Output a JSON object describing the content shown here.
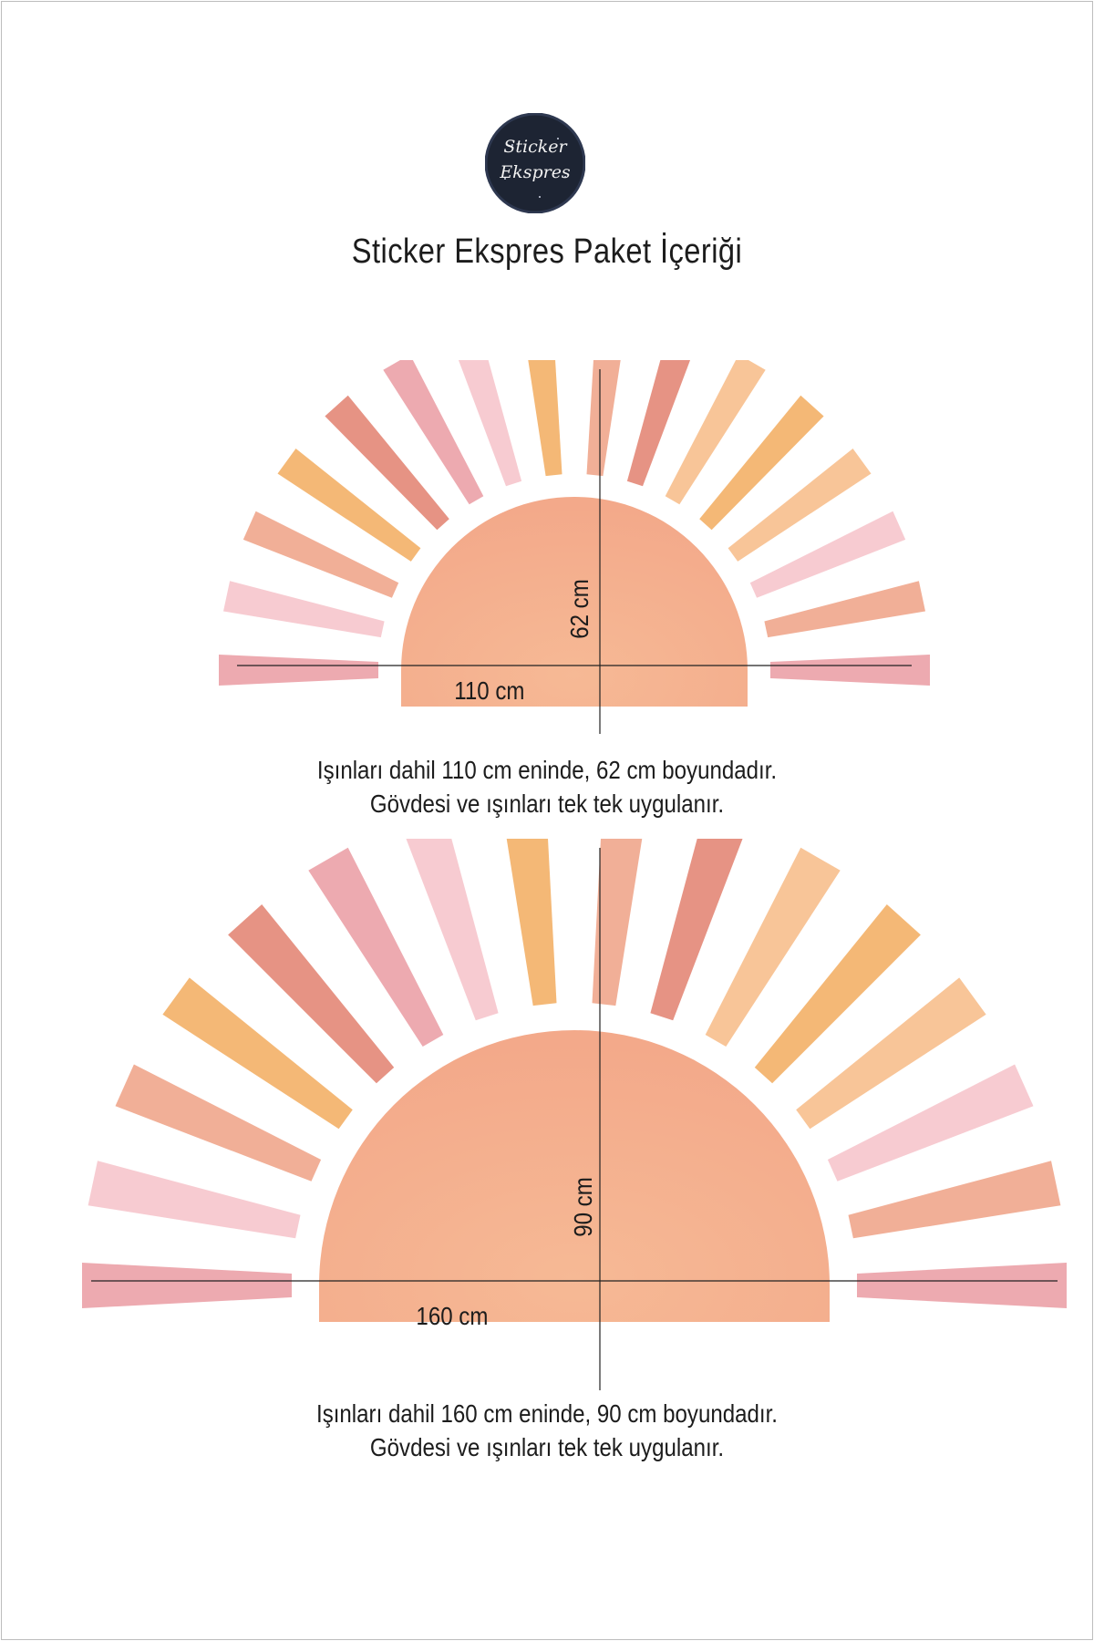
{
  "brand": {
    "logo_line1": "Sticker",
    "logo_line2": "Ekspres"
  },
  "heading": "Sticker Ekspres Paket İçeriği",
  "products": [
    {
      "width_label": "110 cm",
      "height_label": "62 cm",
      "caption_line1": "Işınları dahil 110 cm eninde, 62 cm boyundadır.",
      "caption_line2": "Gövdesi ve ışınları tek tek uygulanır."
    },
    {
      "width_label": "160 cm",
      "height_label": "90 cm",
      "caption_line1": "Işınları dahil 160 cm eninde, 90 cm boyundadır.",
      "caption_line2": "Gövdesi ve ışınları tek tek uygulanır."
    }
  ],
  "colors": {
    "sun_body": "#f3a98a",
    "ray_palette": [
      "#eba3a9",
      "#f6c7cd",
      "#f3b26a",
      "#f0a88e",
      "#e48a7a",
      "#f7c08f"
    ],
    "logo_bg": "#1d2433",
    "text": "#1c1c1c"
  }
}
